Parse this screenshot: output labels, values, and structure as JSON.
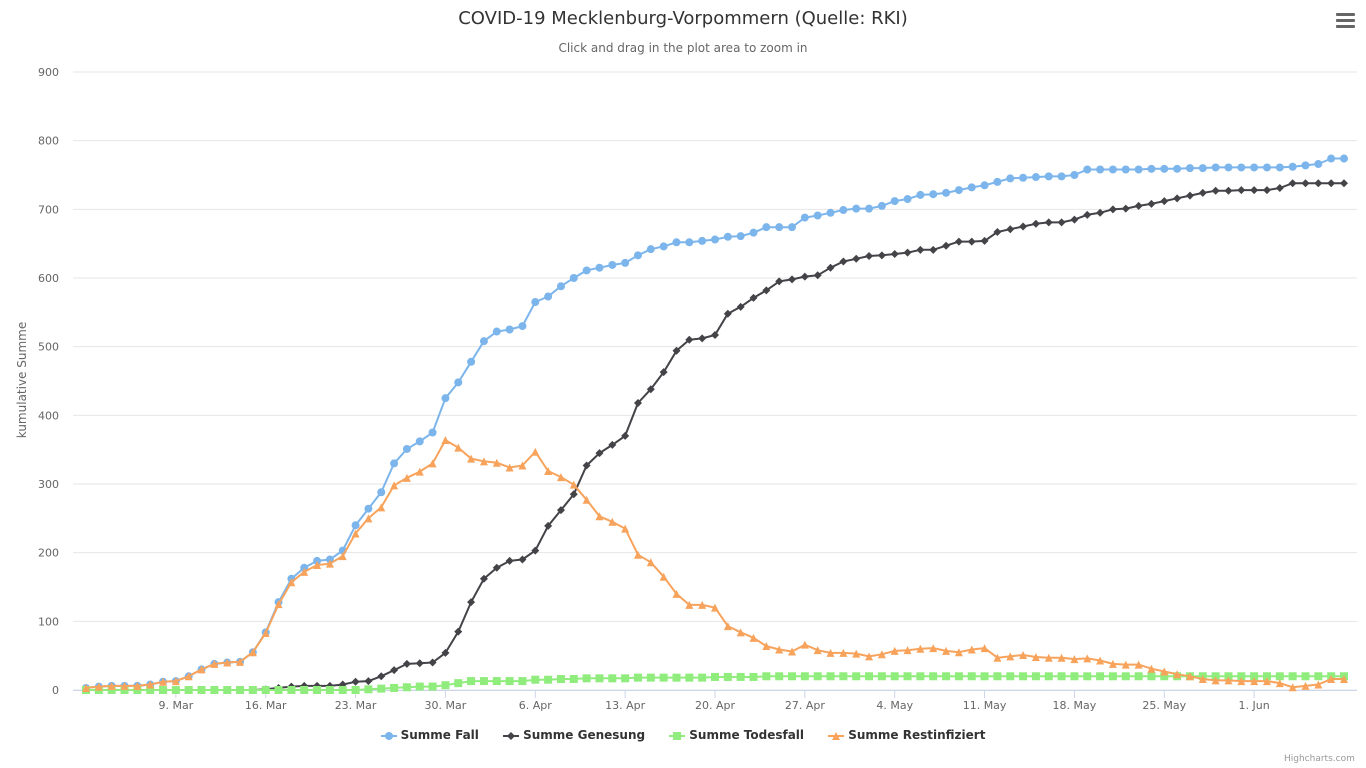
{
  "colors": {
    "series": [
      "#7cb5ec",
      "#434348",
      "#90ed7d",
      "#f7a35c"
    ],
    "grid": "#e6e6e6",
    "axis_line": "#ccd6eb",
    "label": "#666666",
    "title": "#333333"
  },
  "menu": {
    "icon": "hamburger-menu-icon"
  },
  "credits": "Highcharts.com",
  "chart_data": {
    "type": "line",
    "title": "COVID-19 Mecklenburg-Vorpommern (Quelle: RKI)",
    "subtitle": "Click and drag in the plot area to zoom in",
    "xlabel": "",
    "ylabel": "kumulative Summe",
    "x_start": "2020-03-02",
    "x_end": "2020-06-08",
    "ylim": [
      0,
      900
    ],
    "yticks": [
      0,
      100,
      200,
      300,
      400,
      500,
      600,
      700,
      800,
      900
    ],
    "xticks": [
      {
        "date": "2020-03-09",
        "label": "9. Mar"
      },
      {
        "date": "2020-03-16",
        "label": "16. Mar"
      },
      {
        "date": "2020-03-23",
        "label": "23. Mar"
      },
      {
        "date": "2020-03-30",
        "label": "30. Mar"
      },
      {
        "date": "2020-04-06",
        "label": "6. Apr"
      },
      {
        "date": "2020-04-13",
        "label": "13. Apr"
      },
      {
        "date": "2020-04-20",
        "label": "20. Apr"
      },
      {
        "date": "2020-04-27",
        "label": "27. Apr"
      },
      {
        "date": "2020-05-04",
        "label": "4. May"
      },
      {
        "date": "2020-05-11",
        "label": "11. May"
      },
      {
        "date": "2020-05-18",
        "label": "18. May"
      },
      {
        "date": "2020-05-25",
        "label": "25. May"
      },
      {
        "date": "2020-06-01",
        "label": "1. Jun"
      }
    ],
    "grid": true,
    "legend_position": "bottom-center",
    "series": [
      {
        "name": "Summe Fall",
        "marker": "circle",
        "color": "#7cb5ec",
        "values": [
          3,
          5,
          6,
          6,
          6,
          8,
          12,
          13,
          20,
          30,
          38,
          40,
          41,
          55,
          84,
          128,
          162,
          178,
          188,
          190,
          203,
          240,
          264,
          288,
          330,
          351,
          362,
          375,
          425,
          448,
          478,
          508,
          522,
          525,
          530,
          565,
          573,
          588,
          600,
          611,
          615,
          619,
          622,
          633,
          642,
          646,
          652,
          652,
          654,
          656,
          660,
          661,
          666,
          674,
          674,
          674,
          688,
          691,
          695,
          699,
          701,
          701,
          705,
          712,
          715,
          721,
          722,
          724,
          728,
          732,
          735,
          740,
          745,
          746,
          747,
          748,
          748,
          750,
          758,
          758,
          758,
          758,
          758,
          759,
          759,
          759,
          760,
          760,
          761,
          761,
          761,
          761,
          761,
          761,
          762,
          764,
          766,
          774,
          774
        ]
      },
      {
        "name": "Summe Genesung",
        "marker": "diamond",
        "color": "#434348",
        "values": [
          0,
          0,
          0,
          0,
          0,
          0,
          0,
          0,
          0,
          0,
          0,
          0,
          0,
          0,
          1,
          3,
          5,
          6,
          6,
          6,
          8,
          12,
          13,
          20,
          29,
          38,
          39,
          40,
          54,
          85,
          128,
          162,
          178,
          188,
          190,
          203,
          239,
          262,
          285,
          327,
          345,
          357,
          370,
          418,
          438,
          463,
          494,
          510,
          512,
          517,
          548,
          558,
          571,
          582,
          595,
          598,
          602,
          604,
          615,
          624,
          628,
          632,
          633,
          635,
          637,
          641,
          641,
          647,
          653,
          653,
          654,
          667,
          671,
          675,
          679,
          681,
          681,
          685,
          692,
          695,
          700,
          701,
          705,
          708,
          712,
          716,
          720,
          724,
          727,
          727,
          728,
          728,
          728,
          731,
          738,
          738,
          738,
          738,
          738
        ]
      },
      {
        "name": "Summe Todesfall",
        "marker": "square",
        "color": "#90ed7d",
        "values": [
          0,
          0,
          0,
          0,
          0,
          0,
          0,
          0,
          0,
          0,
          0,
          0,
          0,
          0,
          0,
          0,
          0,
          0,
          0,
          0,
          0,
          0,
          1,
          2,
          3,
          4,
          5,
          5,
          7,
          10,
          13,
          13,
          13,
          13,
          13,
          15,
          15,
          16,
          16,
          17,
          17,
          17,
          17,
          18,
          18,
          18,
          18,
          18,
          18,
          19,
          19,
          19,
          19,
          20,
          20,
          20,
          20,
          20,
          20,
          20,
          20,
          20,
          20,
          20,
          20,
          20,
          20,
          20,
          20,
          20,
          20,
          20,
          20,
          20,
          20,
          20,
          20,
          20,
          20,
          20,
          20,
          20,
          20,
          20,
          20,
          20,
          20,
          20,
          20,
          20,
          20,
          20,
          20,
          20,
          20,
          20,
          20,
          20,
          20
        ]
      },
      {
        "name": "Summe Restinfiziert",
        "marker": "triangle",
        "color": "#f7a35c",
        "values": [
          3,
          5,
          6,
          6,
          6,
          8,
          12,
          13,
          20,
          30,
          38,
          40,
          41,
          55,
          83,
          125,
          157,
          172,
          182,
          184,
          195,
          228,
          250,
          266,
          298,
          309,
          318,
          330,
          364,
          353,
          337,
          333,
          331,
          324,
          327,
          347,
          319,
          310,
          299,
          277,
          253,
          245,
          235,
          197,
          186,
          165,
          140,
          124,
          124,
          120,
          93,
          84,
          76,
          64,
          59,
          56,
          66,
          58,
          54,
          54,
          53,
          49,
          52,
          57,
          58,
          60,
          61,
          57,
          55,
          59,
          61,
          47,
          49,
          51,
          48,
          47,
          47,
          45,
          46,
          43,
          38,
          37,
          37,
          31,
          27,
          23,
          20,
          16,
          14,
          14,
          13,
          13,
          13,
          10,
          4,
          6,
          8,
          16,
          16
        ]
      }
    ]
  }
}
